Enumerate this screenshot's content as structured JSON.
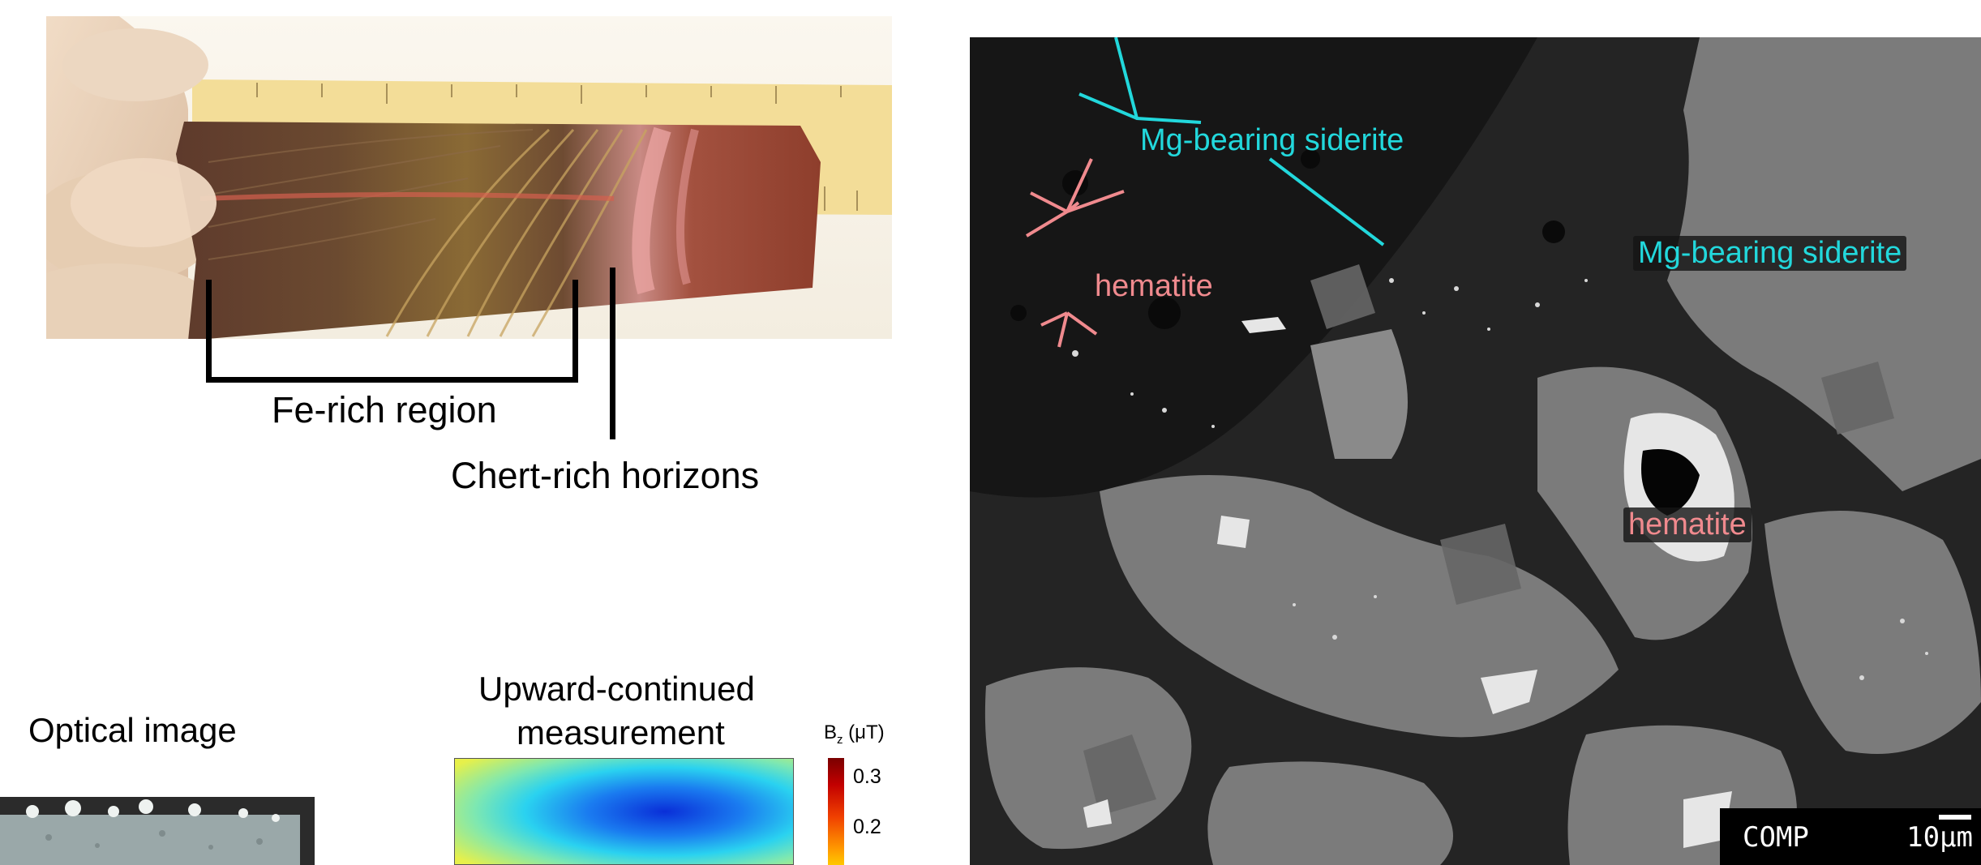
{
  "photo_annotations": {
    "fe_rich_region": "Fe-rich region",
    "chert_rich_horizons": "Chert-rich horizons"
  },
  "sem": {
    "labels": {
      "siderite_top": "Mg-bearing siderite",
      "siderite_right": "Mg-bearing siderite",
      "hematite_left": "hematite",
      "hematite_center": "hematite"
    },
    "scalebar": {
      "mode": "COMP",
      "length": "10μm"
    }
  },
  "bottom_panels": {
    "optical_title": "Optical image",
    "upward_title_line1": "Upward-continued",
    "upward_title_line2": "measurement",
    "colorbar_unit_prefix": "B",
    "colorbar_unit_sub": "z",
    "colorbar_unit_suffix": " (μT)",
    "colorbar_ticks": [
      "0.3",
      "0.2"
    ]
  },
  "colors": {
    "siderite_label": "#22d8dc",
    "hematite_label": "#f08a8e",
    "sem_background": "#232323"
  }
}
